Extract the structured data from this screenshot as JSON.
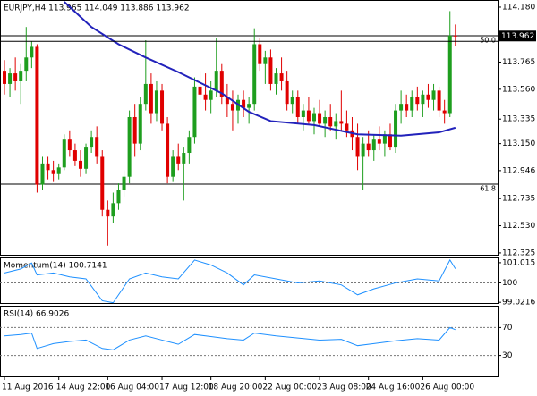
{
  "chart_data": [
    {
      "type": "candlestick",
      "title": "EURJPY,H4  113.965 114.049 113.886 113.962",
      "categories": [
        "11 Aug 2016",
        null,
        null,
        null,
        null,
        null,
        null,
        null,
        null,
        null,
        "14 Aug 22:00",
        null,
        null,
        null,
        null,
        null,
        null,
        null,
        null,
        "16 Aug 04:00",
        null,
        null,
        null,
        null,
        null,
        null,
        null,
        null,
        null,
        "17 Aug 12:00",
        null,
        null,
        null,
        null,
        null,
        null,
        null,
        null,
        "18 Aug 20:00",
        null,
        null,
        null,
        null,
        null,
        null,
        null,
        null,
        null,
        "22 Aug 00:00",
        null,
        null,
        null,
        null,
        null,
        null,
        null,
        null,
        null,
        "23 Aug 08:00",
        null,
        null,
        null,
        null,
        null,
        null,
        null,
        null,
        "24 Aug 16:00",
        null,
        null,
        null,
        null,
        null,
        null,
        null,
        null,
        null,
        "26 Aug 00:00",
        null,
        null,
        null,
        null,
        null,
        null
      ],
      "open": [
        113.7,
        113.6,
        113.68,
        113.62,
        113.7,
        113.8,
        113.88,
        112.84,
        113.0,
        112.95,
        112.92,
        112.97,
        113.18,
        113.1,
        113.02,
        112.96,
        113.12,
        113.2,
        113.05,
        112.65,
        112.6,
        112.7,
        112.8,
        112.9,
        113.35,
        113.15,
        113.45,
        113.6,
        113.38,
        113.55,
        113.3,
        112.9,
        113.05,
        113.0,
        113.08,
        113.2,
        113.58,
        113.52,
        113.48,
        113.55,
        113.7,
        113.5,
        113.45,
        113.4,
        113.48,
        113.42,
        113.45,
        113.9,
        113.75,
        113.8,
        113.6,
        113.68,
        113.62,
        113.45,
        113.5,
        113.35,
        113.4,
        113.32,
        113.38,
        113.3,
        113.35,
        113.28,
        113.32,
        113.3,
        113.25,
        113.2,
        113.05,
        113.15,
        113.1,
        113.18,
        113.15,
        113.22,
        113.12,
        113.4,
        113.45,
        113.4,
        113.5,
        113.45,
        113.52,
        113.48,
        113.55,
        113.4,
        113.38,
        113.965
      ],
      "high": [
        113.78,
        113.72,
        113.8,
        113.75,
        114.03,
        113.92,
        113.9,
        113.05,
        113.05,
        113.02,
        113.0,
        113.22,
        113.25,
        113.15,
        113.1,
        113.15,
        113.25,
        113.28,
        113.1,
        112.72,
        112.78,
        112.85,
        112.95,
        113.4,
        113.45,
        113.5,
        113.93,
        113.68,
        113.62,
        113.6,
        113.35,
        113.1,
        113.15,
        113.12,
        113.25,
        113.65,
        113.7,
        113.68,
        113.62,
        113.95,
        113.75,
        113.6,
        113.55,
        113.52,
        113.55,
        113.5,
        114.02,
        113.95,
        113.85,
        113.86,
        113.72,
        113.8,
        113.7,
        113.55,
        113.55,
        113.45,
        113.5,
        113.42,
        113.48,
        113.4,
        113.45,
        113.38,
        113.55,
        113.4,
        113.35,
        113.3,
        113.2,
        113.25,
        113.22,
        113.28,
        113.25,
        113.3,
        113.45,
        113.55,
        113.52,
        113.55,
        113.58,
        113.55,
        113.6,
        113.6,
        113.58,
        113.48,
        114.15,
        114.049
      ],
      "low": [
        113.52,
        113.5,
        113.55,
        113.45,
        113.62,
        113.72,
        112.78,
        112.8,
        112.88,
        112.86,
        112.88,
        112.95,
        113.05,
        112.98,
        112.9,
        112.92,
        113.08,
        113.0,
        112.6,
        112.38,
        112.55,
        112.65,
        112.75,
        112.85,
        113.05,
        113.1,
        113.4,
        113.3,
        113.32,
        113.25,
        112.85,
        112.86,
        112.95,
        112.72,
        113.0,
        113.15,
        113.45,
        113.4,
        113.38,
        113.5,
        113.45,
        113.35,
        113.25,
        113.3,
        113.35,
        113.3,
        113.4,
        113.7,
        113.6,
        113.55,
        113.52,
        113.55,
        113.4,
        113.38,
        113.3,
        113.25,
        113.3,
        113.22,
        113.28,
        113.2,
        113.25,
        113.18,
        113.25,
        113.2,
        113.1,
        112.95,
        112.8,
        113.05,
        113.02,
        113.1,
        113.05,
        113.1,
        113.08,
        113.3,
        113.35,
        113.35,
        113.4,
        113.35,
        113.42,
        113.4,
        113.35,
        113.3,
        113.35,
        113.886
      ],
      "close": [
        113.6,
        113.68,
        113.62,
        113.7,
        113.8,
        113.88,
        112.84,
        113.0,
        112.95,
        112.92,
        112.97,
        113.18,
        113.1,
        113.02,
        112.96,
        113.12,
        113.2,
        113.05,
        112.65,
        112.6,
        112.7,
        112.8,
        112.9,
        113.35,
        113.15,
        113.45,
        113.6,
        113.38,
        113.55,
        113.3,
        112.9,
        113.05,
        113.0,
        113.08,
        113.2,
        113.58,
        113.52,
        113.48,
        113.55,
        113.7,
        113.5,
        113.45,
        113.4,
        113.48,
        113.42,
        113.45,
        113.9,
        113.75,
        113.8,
        113.6,
        113.68,
        113.62,
        113.45,
        113.5,
        113.35,
        113.4,
        113.32,
        113.38,
        113.3,
        113.35,
        113.28,
        113.32,
        113.3,
        113.25,
        113.2,
        113.05,
        113.15,
        113.1,
        113.18,
        113.15,
        113.22,
        113.12,
        113.4,
        113.45,
        113.4,
        113.5,
        113.45,
        113.52,
        113.48,
        113.55,
        113.4,
        113.38,
        113.965,
        113.962
      ],
      "up_color": "#1e9e1e",
      "down_color": "#e00000",
      "ma": {
        "color": "#2222bb",
        "x": [
          11,
          16,
          21,
          26,
          32,
          40,
          45,
          49,
          57,
          65,
          73,
          80,
          83
        ],
        "values": [
          114.22,
          114.03,
          113.9,
          113.8,
          113.69,
          113.53,
          113.39,
          113.32,
          113.29,
          113.22,
          113.21,
          113.235,
          113.27
        ]
      },
      "levels": [
        {
          "label": "50.0",
          "value": 113.964
        },
        {
          "label": "61.8",
          "value": 112.844
        }
      ],
      "last_price": 113.962,
      "ylim": [
        112.311,
        114.227
      ],
      "yticks": [
        {
          "value": 114.18,
          "label": "114.180"
        },
        113.765,
        {
          "value": 113.56,
          "label": "113.560"
        },
        113.335,
        {
          "value": 113.15,
          "label": "113.150"
        },
        112.946,
        112.735,
        {
          "value": 112.53,
          "label": "112.530"
        },
        112.325
      ]
    },
    {
      "type": "line",
      "title": "Momentum(14) 100.7141",
      "color": "#1e90ff",
      "x": [
        0,
        3,
        5,
        6,
        9,
        12,
        15,
        18,
        20,
        23,
        26,
        29,
        32,
        35,
        38,
        41,
        44,
        46,
        50,
        54,
        58,
        62,
        65,
        68,
        72,
        76,
        80,
        82,
        83
      ],
      "values": [
        100.5,
        100.7,
        101.0,
        100.4,
        100.5,
        100.3,
        100.2,
        99.1,
        99.0,
        100.2,
        100.5,
        100.3,
        100.2,
        101.15,
        100.9,
        100.5,
        99.9,
        100.4,
        100.2,
        100.0,
        100.1,
        99.9,
        99.4,
        99.7,
        100.0,
        100.2,
        100.1,
        101.15,
        100.7141
      ],
      "levels": [
        100
      ],
      "ylim": [
        98.985,
        101.236
      ],
      "yticks": [
        101.015,
        100,
        99.0216
      ]
    },
    {
      "type": "line",
      "title": "RSI(14) 66.9026",
      "color": "#1e90ff",
      "x": [
        0,
        3,
        5,
        6,
        9,
        12,
        15,
        18,
        20,
        23,
        26,
        29,
        32,
        35,
        38,
        41,
        44,
        46,
        50,
        54,
        58,
        62,
        65,
        68,
        72,
        76,
        80,
        82,
        83
      ],
      "values": [
        58,
        60,
        62,
        40,
        47,
        50,
        52,
        40,
        38,
        52,
        58,
        52,
        46,
        60,
        57,
        54,
        52,
        62,
        58,
        55,
        52,
        53,
        44,
        47,
        51,
        54,
        52,
        70,
        66.9026
      ],
      "levels": [
        70,
        30
      ],
      "ylim": [
        0,
        100
      ],
      "yticks": [
        70,
        30
      ]
    }
  ]
}
